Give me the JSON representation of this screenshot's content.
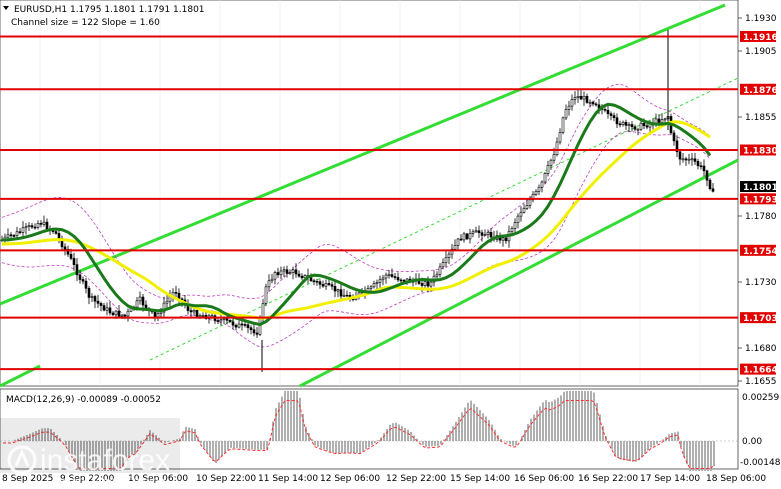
{
  "header": {
    "symbol_line": "EURUSD,H1  1.1795 1.1801 1.1791 1.1801",
    "channel_line": "Channel size = 122  Slope = 1.60"
  },
  "macd": {
    "label": "MACD(12,26,9) -0.00089 -0.00052",
    "scale_labels": [
      "0.00259",
      "0.00",
      "-0.00148"
    ]
  },
  "watermark": {
    "brand": "instaforex",
    "tagline": "Instant Forex Trading"
  },
  "price_axis": {
    "ticks": [
      "1.1930",
      "1.1905",
      "1.1855",
      "1.1780",
      "1.1730",
      "1.1680",
      "1.1655"
    ],
    "current_price": "1.1801"
  },
  "levels": [
    {
      "price": "1.1916",
      "value": 1.1916
    },
    {
      "price": "1.1876",
      "value": 1.1876
    },
    {
      "price": "1.1830",
      "value": 1.183
    },
    {
      "price": "1.1793",
      "value": 1.1793
    },
    {
      "price": "1.1754",
      "value": 1.1754
    },
    {
      "price": "1.1703",
      "value": 1.1703
    },
    {
      "price": "1.1664",
      "value": 1.1664
    }
  ],
  "time_axis": {
    "labels": [
      "8 Sep 2025",
      "9 Sep 22:00",
      "10 Sep 06:00",
      "10 Sep 22:00",
      "11 Sep 14:00",
      "12 Sep 06:00",
      "12 Sep 22:00",
      "15 Sep 14:00",
      "16 Sep 06:00",
      "16 Sep 22:00",
      "17 Sep 14:00",
      "18 Sep 06:00"
    ]
  },
  "colors": {
    "level_line": "#e00000",
    "level_label_bg": "#e00000",
    "channel": "#33dd33",
    "ma_fast": "#1a7a1a",
    "ma_slow": "#f0f000",
    "envelope": "#c040c0",
    "candle": "#000000",
    "macd_hist": "#b0b0b0",
    "macd_signal": "#ff3030"
  }
}
